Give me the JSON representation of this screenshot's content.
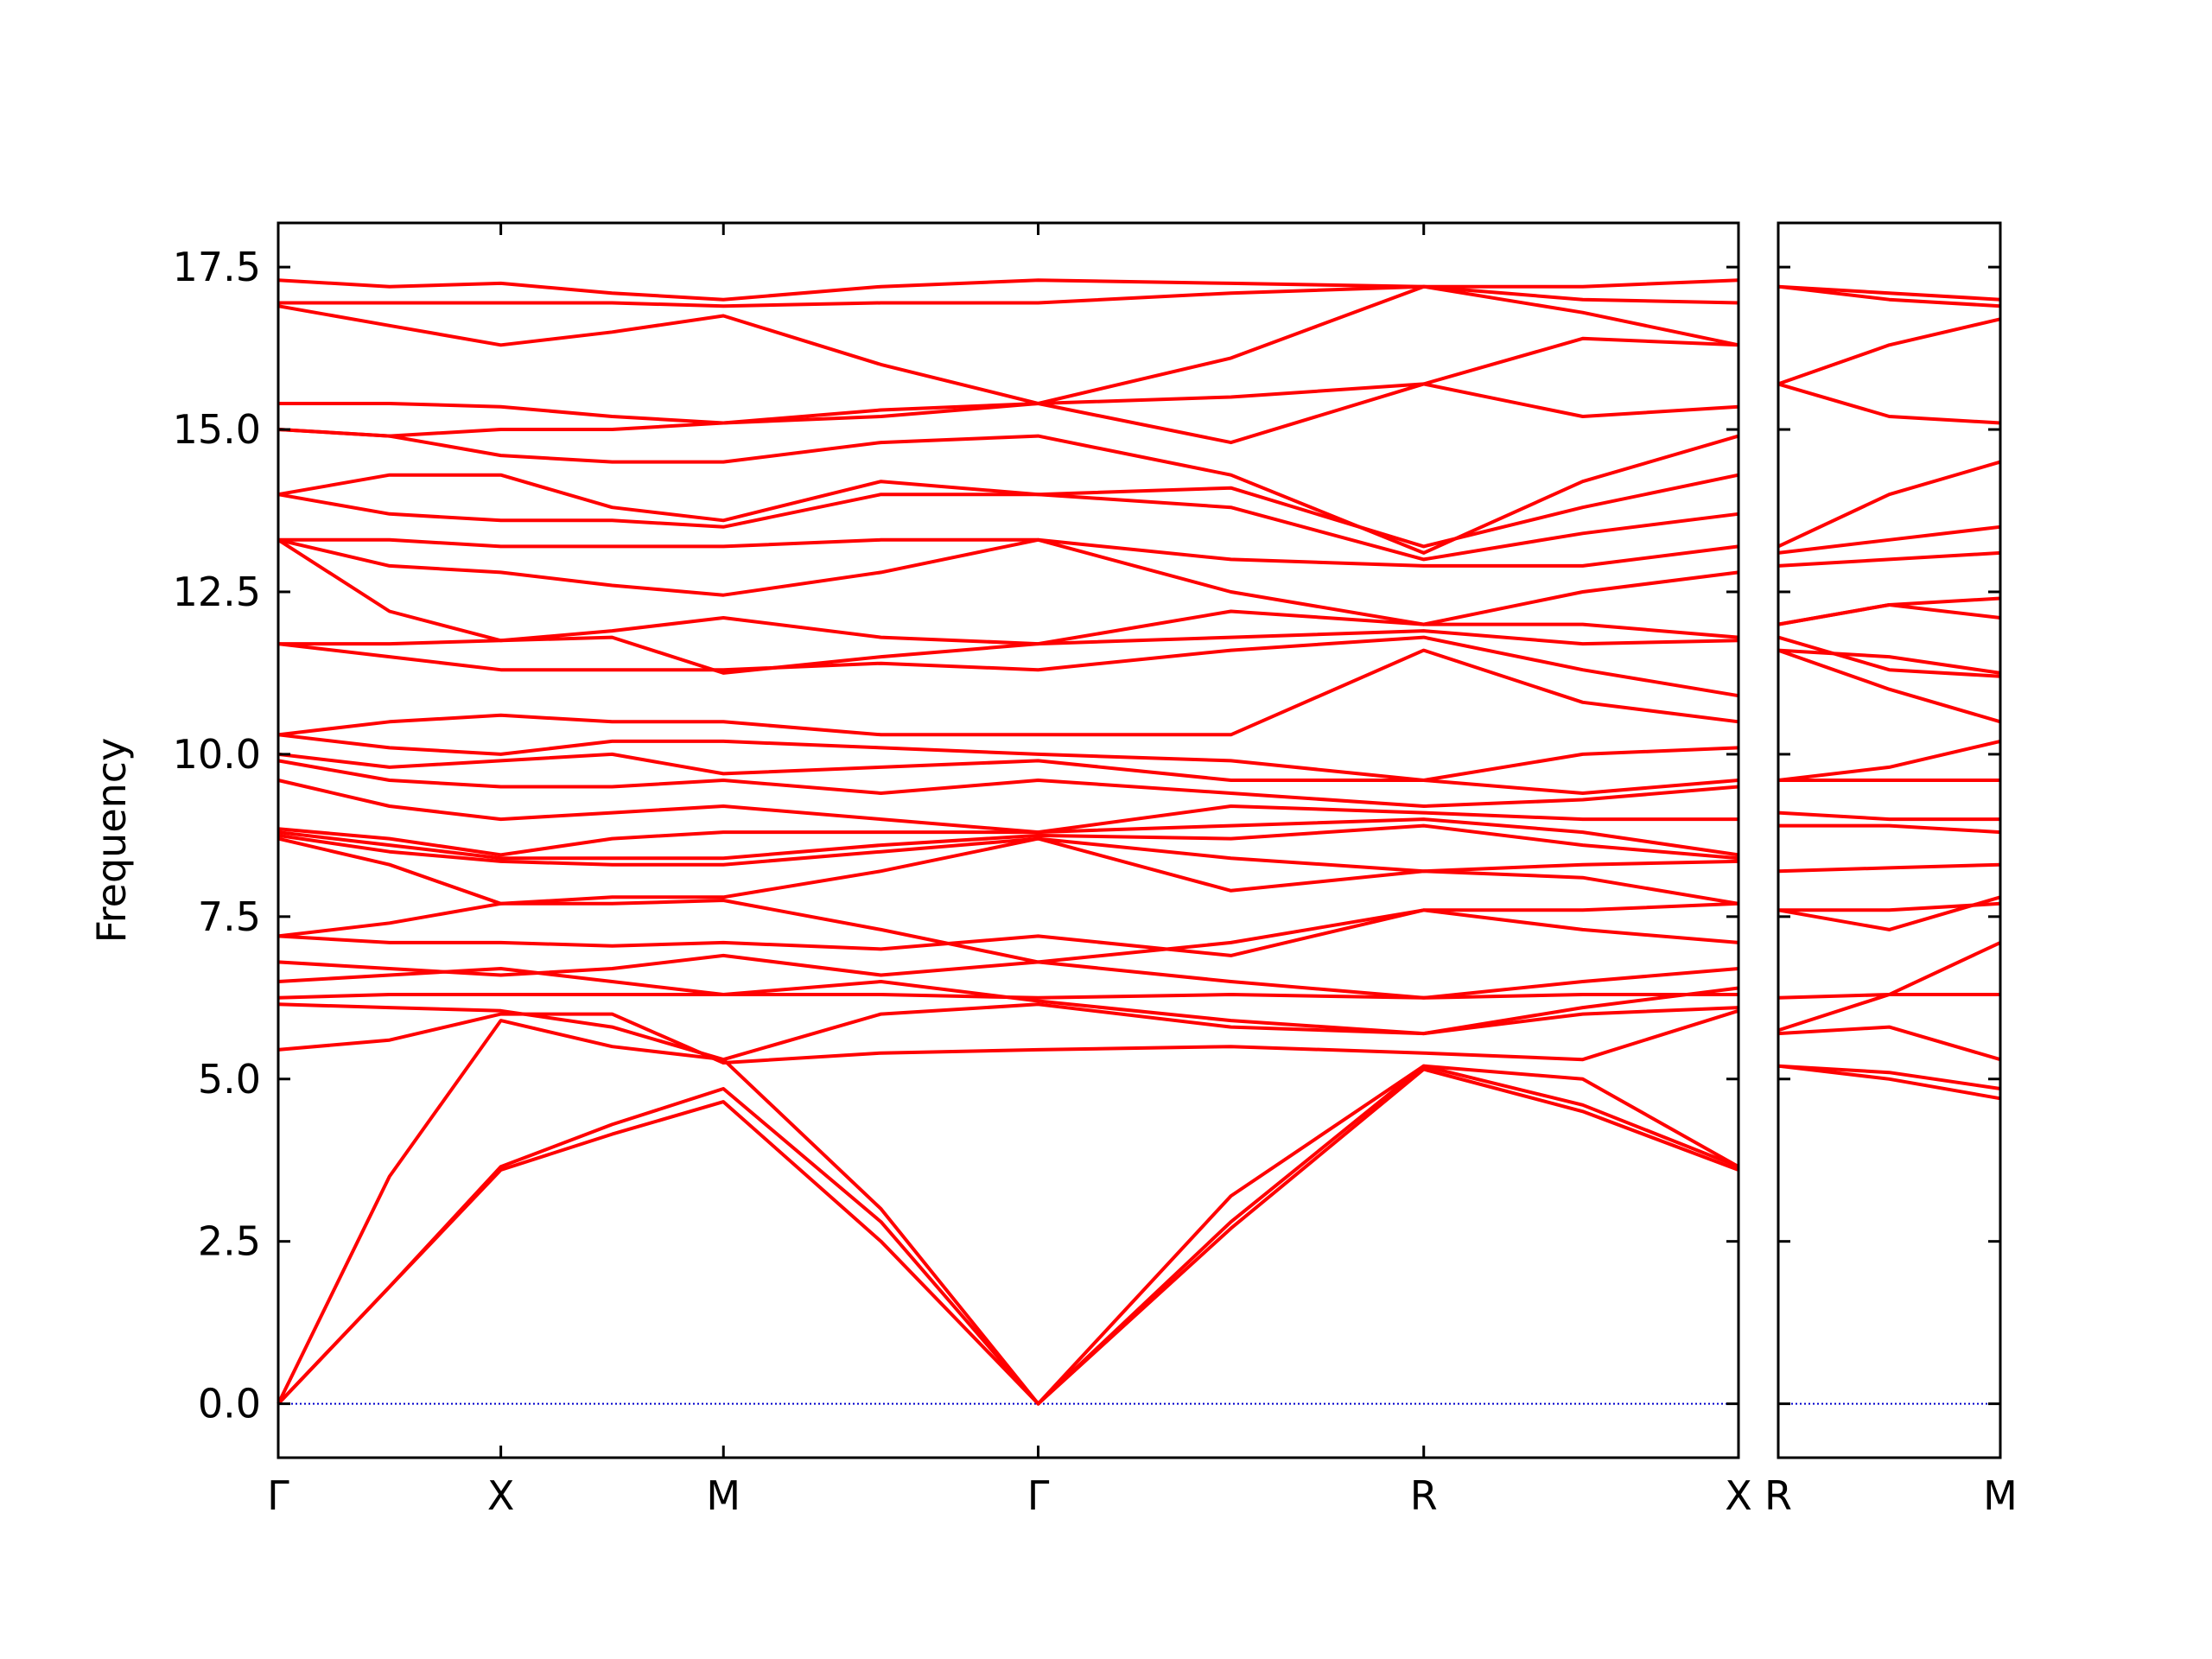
{
  "chart_data": [
    {
      "type": "line",
      "color": "#ff0000",
      "ylabel": "Frequency",
      "ylim": [
        -0.83,
        18.18
      ],
      "yticks": [
        {
          "value": 0,
          "label": "0.0"
        },
        2.5,
        {
          "value": 5,
          "label": "5.0"
        },
        7.5,
        {
          "value": 10,
          "label": "10.0"
        },
        12.5,
        {
          "value": 15,
          "label": "15.0"
        },
        17.5
      ],
      "ytick_labels": true,
      "xlim": [
        0,
        3.28
      ],
      "xticks": [
        {
          "value": 0,
          "label": "Γ"
        },
        {
          "value": 0.5,
          "label": "X"
        },
        {
          "value": 1.0,
          "label": "M"
        },
        {
          "value": 1.707,
          "label": "Γ"
        },
        {
          "value": 2.573,
          "label": "R"
        },
        {
          "value": 3.28,
          "label": "X"
        }
      ],
      "hline": 0,
      "hline_color": "#0000cc",
      "x": [
        0,
        0.25,
        0.5,
        0.75,
        1.0,
        1.354,
        1.707,
        2.14,
        2.573,
        2.93,
        3.28
      ],
      "series": [
        {
          "values": [
            0,
            1.8,
            3.6,
            4.15,
            4.65,
            2.5,
            0,
            2.7,
            5.15,
            4.5,
            3.6
          ]
        },
        {
          "values": [
            0,
            1.8,
            3.65,
            4.3,
            4.85,
            2.8,
            0,
            2.8,
            5.2,
            4.6,
            3.65
          ]
        },
        {
          "values": [
            0,
            3.5,
            5.9,
            5.5,
            5.3,
            3.0,
            0,
            3.2,
            5.2,
            5.0,
            3.65
          ]
        },
        {
          "values": [
            5.45,
            5.6,
            6.0,
            6.0,
            5.25,
            5.4,
            5.45,
            5.5,
            5.4,
            5.3,
            6.05
          ]
        },
        {
          "values": [
            6.15,
            6.1,
            6.05,
            5.8,
            5.3,
            6.0,
            6.15,
            5.8,
            5.7,
            6.0,
            6.1
          ]
        },
        {
          "values": [
            6.25,
            6.3,
            6.3,
            6.3,
            6.3,
            6.3,
            6.25,
            6.3,
            6.25,
            6.3,
            6.3
          ]
        },
        {
          "values": [
            6.5,
            6.6,
            6.7,
            6.5,
            6.3,
            6.5,
            6.2,
            5.9,
            5.7,
            6.1,
            6.4
          ]
        },
        {
          "values": [
            6.8,
            6.7,
            6.6,
            6.7,
            6.9,
            6.6,
            6.8,
            6.5,
            6.25,
            6.5,
            6.7
          ]
        },
        {
          "values": [
            7.2,
            7.1,
            7.1,
            7.05,
            7.1,
            7.0,
            7.2,
            6.9,
            7.6,
            7.3,
            7.1
          ]
        },
        {
          "values": [
            7.2,
            7.4,
            7.7,
            7.7,
            7.75,
            7.3,
            6.8,
            7.1,
            7.6,
            7.6,
            7.7
          ]
        },
        {
          "values": [
            8.7,
            8.3,
            7.7,
            7.8,
            7.8,
            8.2,
            8.7,
            7.9,
            8.2,
            8.1,
            7.7
          ]
        },
        {
          "values": [
            8.75,
            8.5,
            8.35,
            8.3,
            8.3,
            8.5,
            8.7,
            8.4,
            8.2,
            8.3,
            8.35
          ]
        },
        {
          "values": [
            8.8,
            8.6,
            8.4,
            8.4,
            8.4,
            8.6,
            8.75,
            8.7,
            8.9,
            8.6,
            8.4
          ]
        },
        {
          "values": [
            8.85,
            8.7,
            8.45,
            8.7,
            8.8,
            8.8,
            8.8,
            8.9,
            9.0,
            8.8,
            8.45
          ]
        },
        {
          "values": [
            9.6,
            9.2,
            9.0,
            9.1,
            9.2,
            9.0,
            8.8,
            9.2,
            9.1,
            9.0,
            9.0
          ]
        },
        {
          "values": [
            9.9,
            9.6,
            9.5,
            9.5,
            9.6,
            9.4,
            9.6,
            9.4,
            9.2,
            9.3,
            9.5
          ]
        },
        {
          "values": [
            10.0,
            9.8,
            9.9,
            10.0,
            9.7,
            9.8,
            9.9,
            9.6,
            9.6,
            9.4,
            9.6
          ]
        },
        {
          "values": [
            10.3,
            10.1,
            10.0,
            10.2,
            10.2,
            10.1,
            10.0,
            9.9,
            9.6,
            10.0,
            10.1
          ]
        },
        {
          "values": [
            10.3,
            10.5,
            10.6,
            10.5,
            10.5,
            10.3,
            10.3,
            10.3,
            11.6,
            10.8,
            10.5
          ]
        },
        {
          "values": [
            11.7,
            11.5,
            11.3,
            11.3,
            11.3,
            11.4,
            11.3,
            11.6,
            11.8,
            11.3,
            10.9
          ]
        },
        {
          "values": [
            11.7,
            11.7,
            11.75,
            11.9,
            12.1,
            11.8,
            11.7,
            11.8,
            11.9,
            11.7,
            11.75
          ]
        },
        {
          "values": [
            13.3,
            12.2,
            11.75,
            11.8,
            11.25,
            11.5,
            11.7,
            12.2,
            12.0,
            12.0,
            11.8
          ]
        },
        {
          "values": [
            13.3,
            12.9,
            12.8,
            12.6,
            12.45,
            12.8,
            13.3,
            12.5,
            12.0,
            12.5,
            12.8
          ]
        },
        {
          "values": [
            13.3,
            13.3,
            13.2,
            13.2,
            13.2,
            13.3,
            13.3,
            13.0,
            12.9,
            12.9,
            13.2
          ]
        },
        {
          "values": [
            14.0,
            13.7,
            13.6,
            13.6,
            13.5,
            14.0,
            14.0,
            13.8,
            13.0,
            13.4,
            13.7
          ]
        },
        {
          "values": [
            14.0,
            14.3,
            14.3,
            13.8,
            13.6,
            14.2,
            14.0,
            14.1,
            13.2,
            13.8,
            14.3
          ]
        },
        {
          "values": [
            15.0,
            14.9,
            14.6,
            14.5,
            14.5,
            14.8,
            14.9,
            14.3,
            13.1,
            14.2,
            14.9
          ]
        },
        {
          "values": [
            15.0,
            14.9,
            15.0,
            15.0,
            15.1,
            15.2,
            15.4,
            14.8,
            15.7,
            15.2,
            15.35
          ]
        },
        {
          "values": [
            15.4,
            15.4,
            15.35,
            15.2,
            15.1,
            15.3,
            15.4,
            15.5,
            15.7,
            16.4,
            16.3
          ]
        },
        {
          "values": [
            16.9,
            16.6,
            16.3,
            16.5,
            16.75,
            16.0,
            15.4,
            16.1,
            17.2,
            16.8,
            16.3
          ]
        },
        {
          "values": [
            16.95,
            16.95,
            16.95,
            16.95,
            16.9,
            16.95,
            16.95,
            17.1,
            17.2,
            17.0,
            16.95
          ]
        },
        {
          "values": [
            17.3,
            17.2,
            17.25,
            17.1,
            17.0,
            17.2,
            17.3,
            17.25,
            17.2,
            17.2,
            17.3
          ]
        }
      ]
    },
    {
      "type": "line",
      "color": "#ff0000",
      "ylim": [
        -0.83,
        18.18
      ],
      "yticks": [
        0,
        2.5,
        5,
        7.5,
        10,
        12.5,
        15,
        17.5
      ],
      "ytick_labels": false,
      "xlim": [
        0,
        0.5
      ],
      "xticks": [
        {
          "value": 0,
          "label": "R"
        },
        {
          "value": 0.5,
          "label": "M"
        }
      ],
      "hline": 0,
      "hline_color": "#0000cc",
      "x": [
        0,
        0.25,
        0.5
      ],
      "series": [
        {
          "values": [
            5.2,
            5.0,
            4.7
          ]
        },
        {
          "values": [
            5.2,
            5.1,
            4.85
          ]
        },
        {
          "values": [
            5.7,
            5.8,
            5.3
          ]
        },
        {
          "values": [
            6.25,
            6.3,
            6.3
          ]
        },
        {
          "values": [
            5.75,
            6.3,
            7.1
          ]
        },
        {
          "values": [
            7.6,
            7.6,
            7.7
          ]
        },
        {
          "values": [
            7.6,
            7.3,
            7.8
          ]
        },
        {
          "values": [
            8.2,
            8.25,
            8.3
          ]
        },
        {
          "values": [
            8.9,
            8.9,
            8.8
          ]
        },
        {
          "values": [
            9.1,
            9.0,
            9.0
          ]
        },
        {
          "values": [
            9.6,
            9.6,
            9.6
          ]
        },
        {
          "values": [
            9.6,
            9.8,
            10.2
          ]
        },
        {
          "values": [
            11.6,
            11.0,
            10.5
          ]
        },
        {
          "values": [
            11.8,
            11.3,
            11.2
          ]
        },
        {
          "values": [
            11.6,
            11.5,
            11.25
          ]
        },
        {
          "values": [
            12.0,
            12.3,
            12.1
          ]
        },
        {
          "values": [
            12.0,
            12.3,
            12.4
          ]
        },
        {
          "values": [
            12.9,
            13.0,
            13.1
          ]
        },
        {
          "values": [
            13.1,
            13.3,
            13.5
          ]
        },
        {
          "values": [
            13.2,
            14.0,
            14.5
          ]
        },
        {
          "values": [
            15.7,
            15.2,
            15.1
          ]
        },
        {
          "values": [
            15.7,
            16.3,
            16.7
          ]
        },
        {
          "values": [
            17.2,
            17.1,
            17.0
          ]
        },
        {
          "values": [
            17.2,
            17.0,
            16.9
          ]
        }
      ]
    }
  ]
}
